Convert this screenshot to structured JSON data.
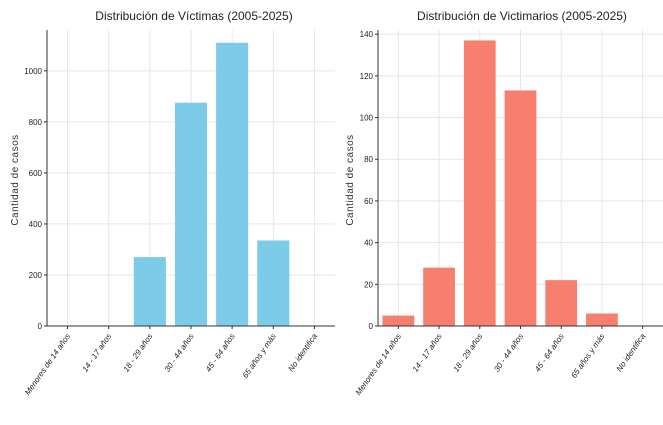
{
  "chart_data": [
    {
      "type": "bar",
      "title": "Distribución de Víctimas (2005-2025)",
      "ylabel": "Cantidad de casos",
      "xlabel": "",
      "categories": [
        "Menores de 14 años",
        "14 - 17 años",
        "18 - 29 años",
        "30 - 44 años",
        "45 - 64 años",
        "65 años y más",
        "No identifica"
      ],
      "values": [
        0,
        0,
        270,
        875,
        1110,
        335,
        0
      ],
      "yticks": [
        0,
        200,
        400,
        600,
        800,
        1000
      ],
      "ylim": [
        0,
        1160
      ],
      "color": "#7ccbe8",
      "grid": true
    },
    {
      "type": "bar",
      "title": "Distribución de Victimarios (2005-2025)",
      "ylabel": "Cantidad de casos",
      "xlabel": "",
      "categories": [
        "Menores de 14 años",
        "14 - 17 años",
        "18 - 29 años",
        "30 - 44 años",
        "45 - 64 años",
        "65 años y más",
        "No identifica"
      ],
      "values": [
        5,
        28,
        137,
        113,
        22,
        6,
        0
      ],
      "yticks": [
        0,
        20,
        40,
        60,
        80,
        100,
        120,
        140
      ],
      "ylim": [
        0,
        142
      ],
      "color": "#f77f70",
      "grid": true
    }
  ]
}
